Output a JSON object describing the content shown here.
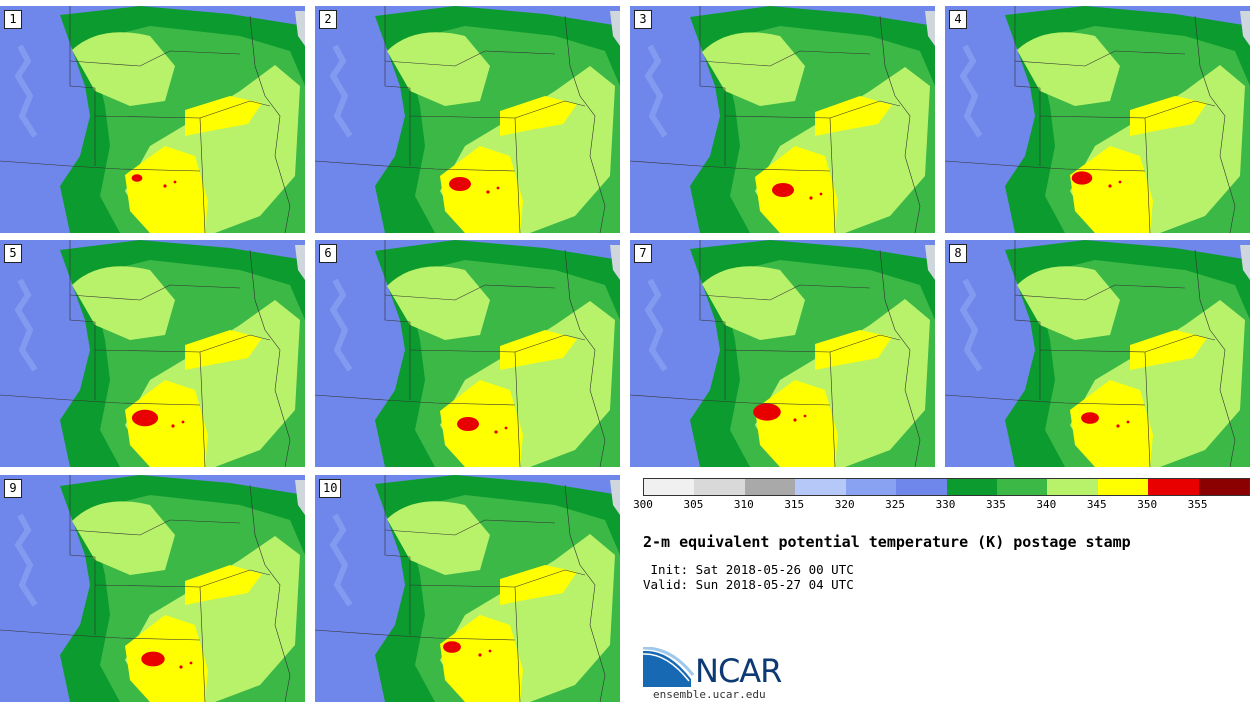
{
  "panels": [
    {
      "label": "1",
      "red": 0.1
    },
    {
      "label": "2",
      "red": 0.5
    },
    {
      "label": "3",
      "red": 0.5
    },
    {
      "label": "4",
      "red": 0.45
    },
    {
      "label": "5",
      "red": 0.65
    },
    {
      "label": "6",
      "red": 0.5
    },
    {
      "label": "7",
      "red": 0.7
    },
    {
      "label": "8",
      "red": 0.35
    },
    {
      "label": "9",
      "red": 0.55
    },
    {
      "label": "10",
      "red": 0.35
    }
  ],
  "colorbar": {
    "colors": [
      "#f0f0f0",
      "#d9d9d9",
      "#a9a9a9",
      "#b5c8f7",
      "#8aa2f2",
      "#6f86ea",
      "#0c9b2e",
      "#3cb847",
      "#b8f26a",
      "#ffff00",
      "#e80000",
      "#8b0000"
    ],
    "ticks": [
      "300",
      "305",
      "310",
      "315",
      "320",
      "325",
      "330",
      "335",
      "340",
      "345",
      "350",
      "355"
    ]
  },
  "title": "2-m equivalent potential temperature (K) postage stamp",
  "init": " Init: Sat 2018-05-26 00 UTC",
  "valid": "Valid: Sun 2018-05-27 04 UTC",
  "logo": {
    "text": "NCAR",
    "url": "ensemble.ucar.edu"
  }
}
